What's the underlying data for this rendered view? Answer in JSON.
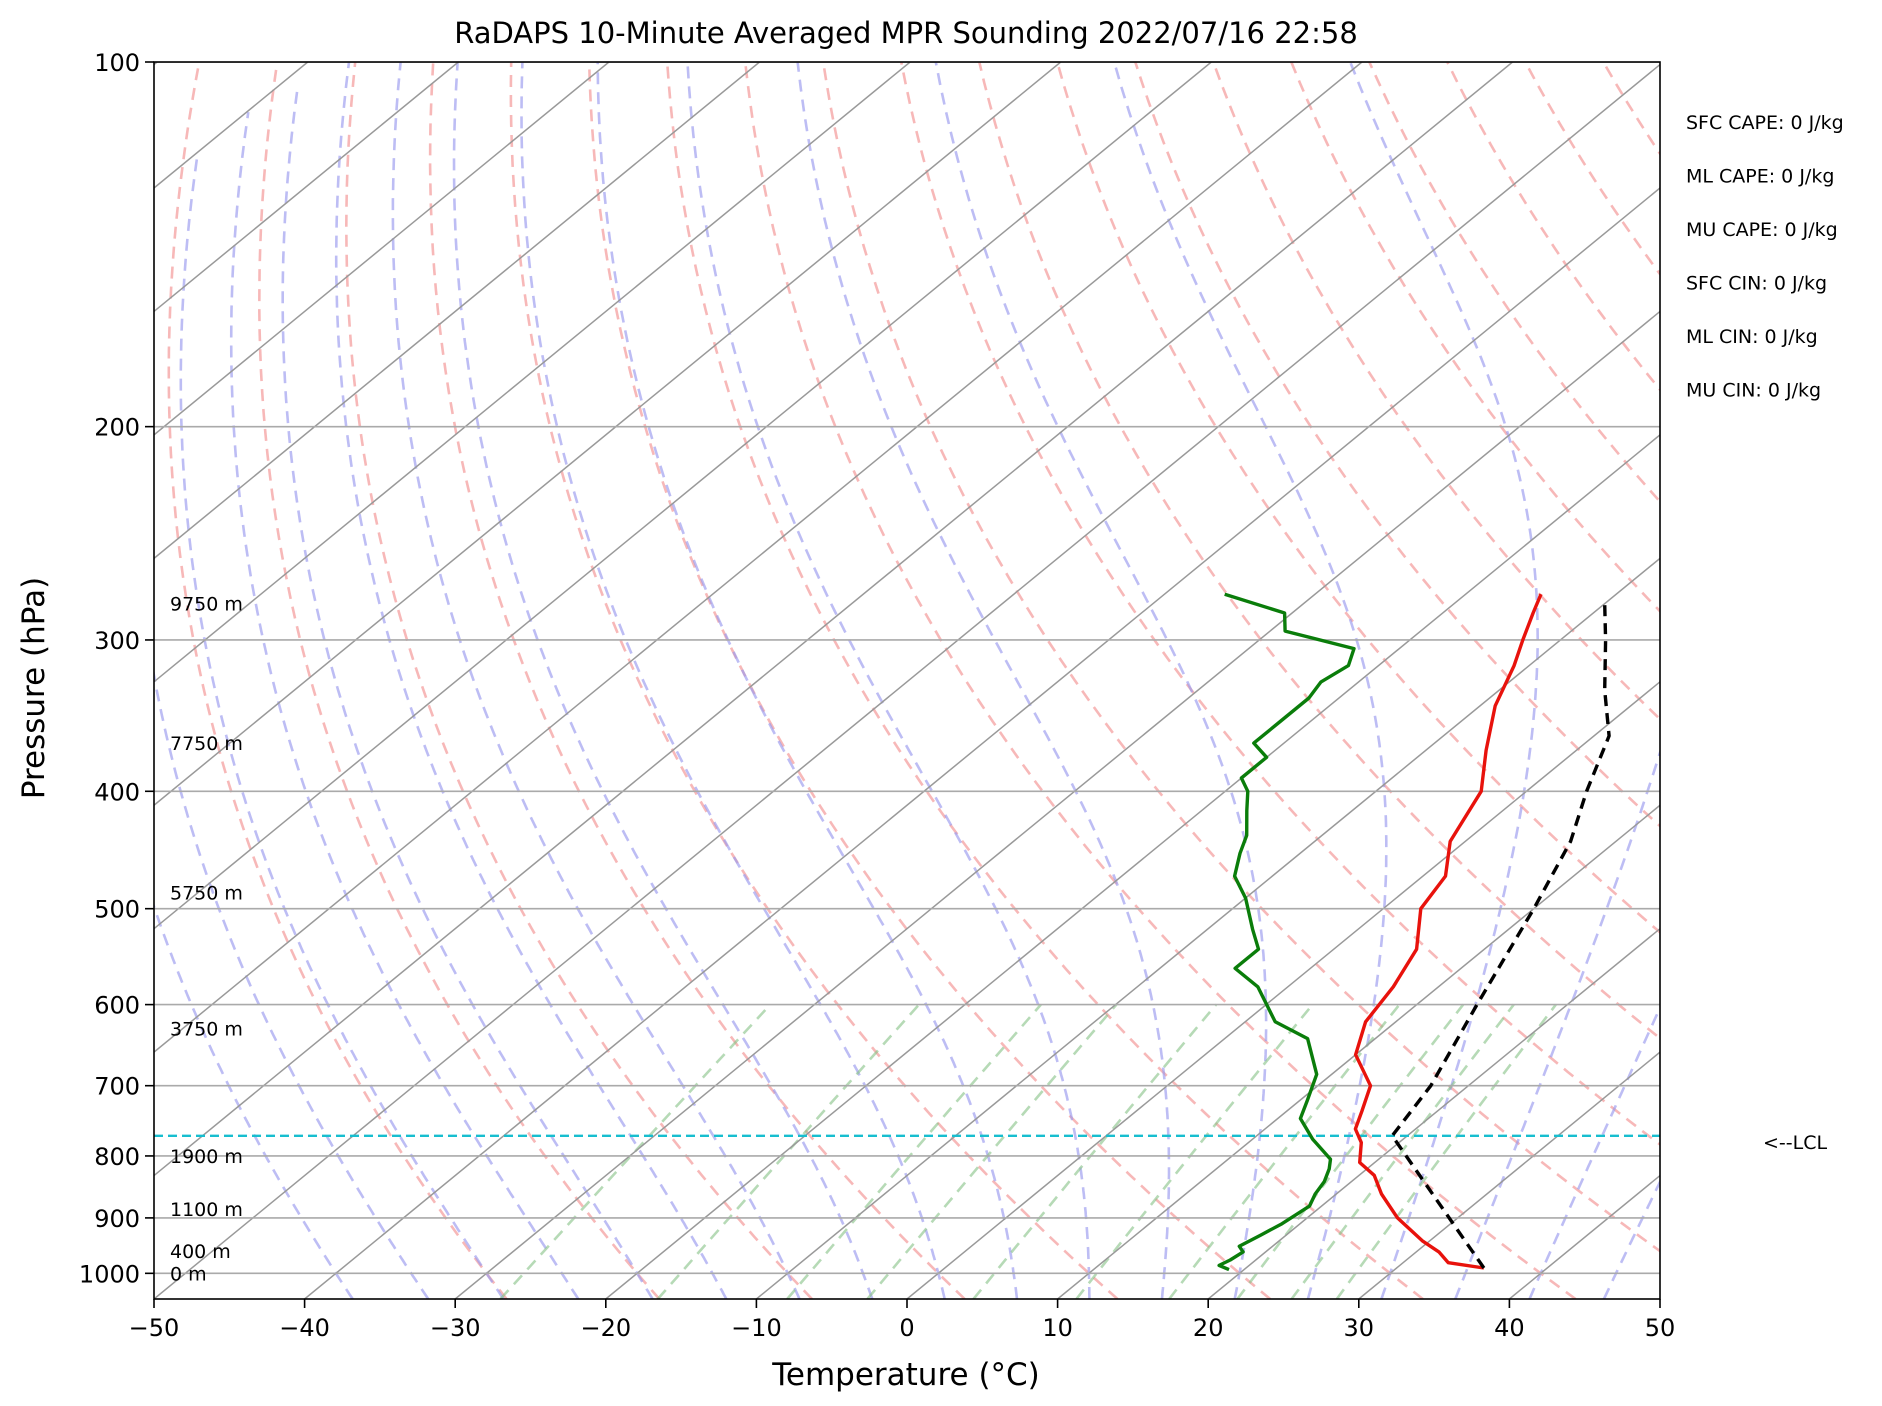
{
  "chart_data": {
    "type": "line",
    "title": "RaDAPS 10-Minute Averaged MPR Sounding 2022/07/16 22:58",
    "xlabel": "Temperature (°C)",
    "ylabel": "Pressure (hPa)",
    "xlim": [
      -50,
      50
    ],
    "ylim": [
      1050,
      100
    ],
    "y_scale": "log",
    "x_ticks": [
      -50,
      -40,
      -30,
      -20,
      -10,
      0,
      10,
      20,
      30,
      40,
      50
    ],
    "x_tick_labels": [
      "−50",
      "−40",
      "−30",
      "−20",
      "−10",
      "0",
      "10",
      "20",
      "30",
      "40",
      "50"
    ],
    "y_ticks": [
      100,
      200,
      300,
      400,
      500,
      600,
      700,
      800,
      900,
      1000
    ],
    "y_tick_labels": [
      "100",
      "200",
      "300",
      "400",
      "500",
      "600",
      "700",
      "800",
      "900",
      "1000"
    ],
    "grid": true,
    "skew": "skew-T",
    "series": [
      {
        "role": "temperature",
        "color": "#e8120c",
        "points": [
          [
            35.8,
            990
          ],
          [
            33,
            980
          ],
          [
            31.5,
            960
          ],
          [
            29.5,
            940
          ],
          [
            26,
            900
          ],
          [
            23,
            860
          ],
          [
            21,
            830
          ],
          [
            19,
            810
          ],
          [
            17.5,
            780
          ],
          [
            16,
            760
          ],
          [
            15,
            735
          ],
          [
            13.5,
            700
          ],
          [
            10,
            660
          ],
          [
            8,
            620
          ],
          [
            7,
            580
          ],
          [
            5.5,
            540
          ],
          [
            2.5,
            500
          ],
          [
            1.5,
            470
          ],
          [
            -1,
            440
          ],
          [
            -3,
            400
          ],
          [
            -6,
            370
          ],
          [
            -9,
            340
          ],
          [
            -11,
            315
          ],
          [
            -12.5,
            300
          ],
          [
            -14,
            285
          ],
          [
            -15,
            275
          ]
        ]
      },
      {
        "role": "dewpoint",
        "color": "#0a7d0a",
        "points": [
          [
            19,
            993
          ],
          [
            18,
            985
          ],
          [
            18.3,
            975
          ],
          [
            18.5,
            960
          ],
          [
            17.8,
            950
          ],
          [
            18.3,
            930
          ],
          [
            18.8,
            910
          ],
          [
            19.2,
            880
          ],
          [
            18.6,
            860
          ],
          [
            18.2,
            840
          ],
          [
            17.5,
            820
          ],
          [
            16.8,
            805
          ],
          [
            14,
            775
          ],
          [
            11.5,
            745
          ],
          [
            10.5,
            720
          ],
          [
            9,
            685
          ],
          [
            5.5,
            640
          ],
          [
            2,
            620
          ],
          [
            -2,
            580
          ],
          [
            -5,
            560
          ],
          [
            -5,
            540
          ],
          [
            -7,
            520
          ],
          [
            -10,
            490
          ],
          [
            -12.5,
            470
          ],
          [
            -14,
            450
          ],
          [
            -15,
            435
          ],
          [
            -17,
            415
          ],
          [
            -18.5,
            400
          ],
          [
            -20,
            390
          ],
          [
            -20,
            375
          ],
          [
            -22,
            365
          ],
          [
            -22,
            350
          ],
          [
            -22,
            335
          ],
          [
            -22.5,
            325
          ],
          [
            -22,
            315
          ],
          [
            -23,
            305
          ],
          [
            -29,
            295
          ],
          [
            -30.5,
            285
          ],
          [
            -36,
            275
          ]
        ]
      },
      {
        "role": "parcel",
        "color": "#000000",
        "dashed": true,
        "points": [
          [
            35.8,
            990
          ],
          [
            19,
            770
          ],
          [
            17.5,
            700
          ],
          [
            14,
            600
          ],
          [
            10,
            500
          ],
          [
            7,
            440
          ],
          [
            4,
            400
          ],
          [
            1,
            360
          ],
          [
            -3,
            330
          ],
          [
            -7,
            300
          ],
          [
            -10,
            280
          ]
        ]
      }
    ],
    "lcl": {
      "pressure": 770,
      "label": "<--LCL",
      "color": "#17becf"
    },
    "height_labels": [
      {
        "text": "9750 m",
        "pressure": 280
      },
      {
        "text": "7750 m",
        "pressure": 365
      },
      {
        "text": "5750 m",
        "pressure": 485
      },
      {
        "text": "3750 m",
        "pressure": 628
      },
      {
        "text": "1900 m",
        "pressure": 800
      },
      {
        "text": "1100 m",
        "pressure": 885
      },
      {
        "text": "400 m",
        "pressure": 958
      },
      {
        "text": "0 m",
        "pressure": 1000
      }
    ],
    "annotations": [
      "SFC CAPE: 0 J/kg",
      "ML CAPE: 0 J/kg",
      "MU CAPE: 0 J/kg",
      "SFC CIN: 0 J/kg",
      "ML CIN: 0 J/kg",
      "MU CIN: 0 J/kg"
    ],
    "background_lines": {
      "dry_adiabat_color": "#f4a0a0",
      "moist_adiabat_color": "#9999ee",
      "mixing_ratio_color": "#86c286",
      "isotherm_color": "#999999"
    }
  }
}
